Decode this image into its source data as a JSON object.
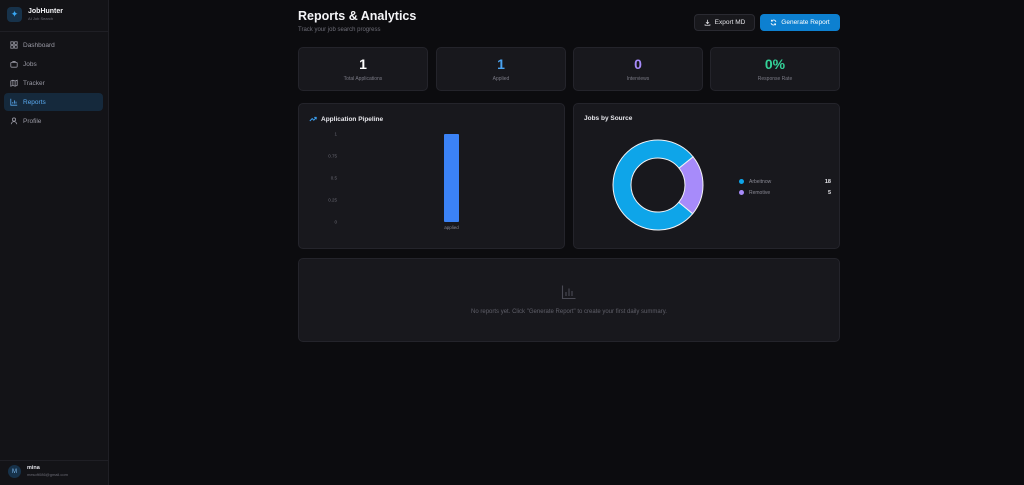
{
  "app": {
    "name": "JobHunter",
    "subtitle": "AI Job Search"
  },
  "sidebar": {
    "items": [
      {
        "label": "Dashboard",
        "icon": "layout-grid-icon",
        "active": false
      },
      {
        "label": "Jobs",
        "icon": "briefcase-icon",
        "active": false
      },
      {
        "label": "Tracker",
        "icon": "map-icon",
        "active": false
      },
      {
        "label": "Reports",
        "icon": "bar-chart-icon",
        "active": true
      },
      {
        "label": "Profile",
        "icon": "user-icon",
        "active": false
      }
    ]
  },
  "user": {
    "initial": "M",
    "name": "mina",
    "email": "mesoft086@gmail.com"
  },
  "header": {
    "title": "Reports & Analytics",
    "subtitle": "Track your job search progress"
  },
  "toolbar": {
    "export_label": "Export MD",
    "generate_label": "Generate Report"
  },
  "stats": [
    {
      "value": "1",
      "label": "Total Applications",
      "color": "#ffffff"
    },
    {
      "value": "1",
      "label": "Applied",
      "color": "#4aa3f0"
    },
    {
      "value": "0",
      "label": "Interviews",
      "color": "#a78bfa"
    },
    {
      "value": "0%",
      "label": "Response Rate",
      "color": "#34d399"
    }
  ],
  "pipeline": {
    "title": "Application Pipeline",
    "chart_data": {
      "type": "bar",
      "categories": [
        "applied"
      ],
      "values": [
        1
      ],
      "ylim": [
        0,
        1
      ],
      "yticks": [
        "0",
        "0.25",
        "0.5",
        "0.75",
        "1"
      ],
      "grid": false,
      "color": "#3b82f6"
    }
  },
  "sources": {
    "title": "Jobs by Source",
    "chart_data": {
      "type": "pie",
      "donut": true,
      "categories": [
        "Arbeitnow",
        "Remotive"
      ],
      "values": [
        18,
        5
      ],
      "colors": [
        "#0ea5e9",
        "#a78bfa"
      ],
      "legend": "right"
    }
  },
  "reports": {
    "empty_text": "No reports yet. Click \"Generate Report\" to create your first daily summary."
  }
}
